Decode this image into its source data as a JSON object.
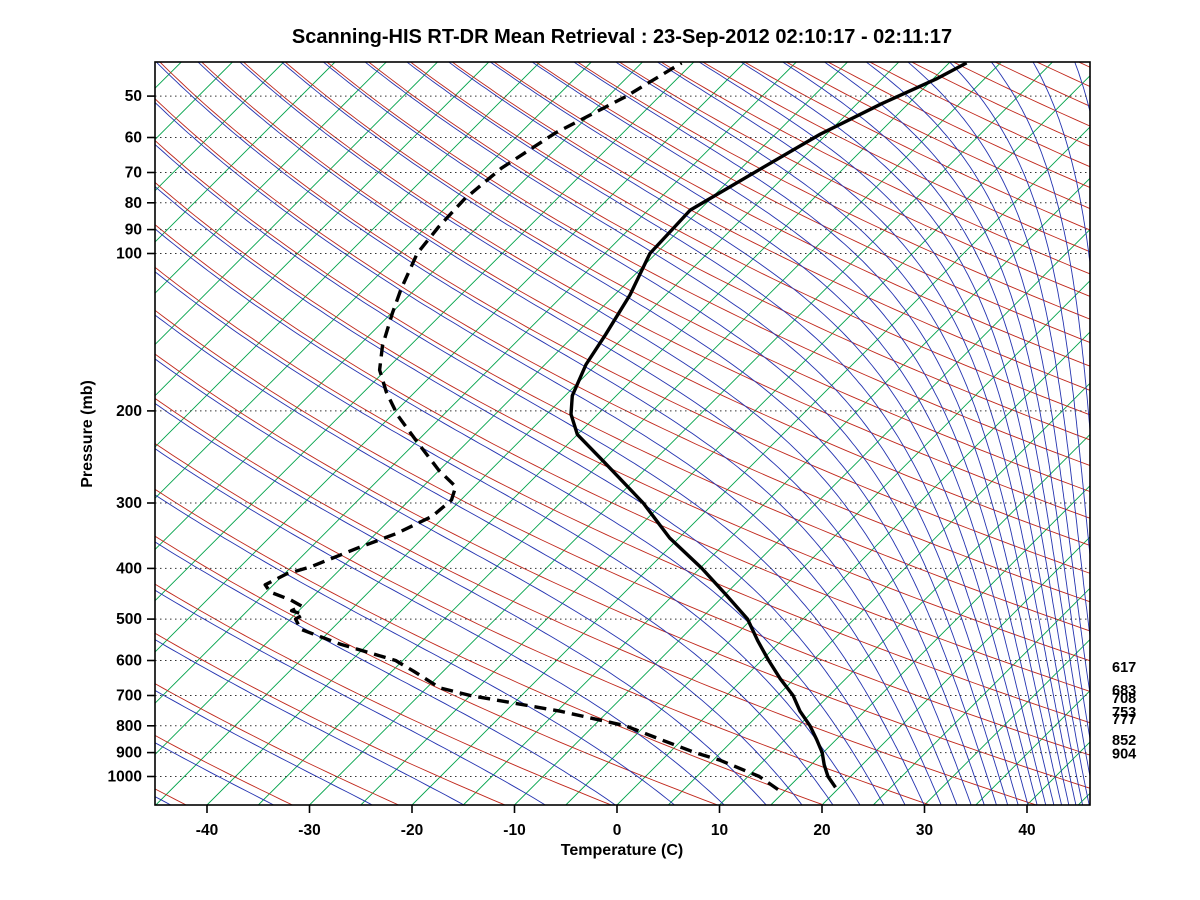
{
  "chart_data": {
    "type": "line",
    "title": "Scanning-HIS RT-DR Mean Retrieval : 23-Sep-2012 02:10:17 - 02:11:17",
    "xlabel": "Temperature (C)",
    "ylabel": "Pressure (mb)",
    "x_ticks": [
      -40,
      -30,
      -20,
      -10,
      0,
      10,
      20,
      30,
      40
    ],
    "y_ticks": [
      50,
      60,
      70,
      80,
      90,
      100,
      200,
      300,
      400,
      500,
      600,
      700,
      800,
      900,
      1000
    ],
    "x_range_at_surface_c": [
      -45,
      46
    ],
    "pressure_range_mb": [
      43,
      1134
    ],
    "skew_slope": 1.0,
    "grid": "horizontal-dotted",
    "legend": "none",
    "series": [
      {
        "name": "temperature",
        "line": "solid",
        "color": "#000000",
        "points_p_t": [
          [
            1049,
            19.6
          ],
          [
            1000,
            17.8
          ],
          [
            950,
            16.3
          ],
          [
            900,
            14.9
          ],
          [
            850,
            13.1
          ],
          [
            800,
            11.1
          ],
          [
            750,
            8.7
          ],
          [
            700,
            6.5
          ],
          [
            650,
            3.6
          ],
          [
            600,
            0.7
          ],
          [
            550,
            -2.3
          ],
          [
            500,
            -5.4
          ],
          [
            450,
            -9.8
          ],
          [
            400,
            -14.8
          ],
          [
            350,
            -20.9
          ],
          [
            300,
            -26.9
          ],
          [
            250,
            -34.8
          ],
          [
            222,
            -40.0
          ],
          [
            203,
            -42.6
          ],
          [
            187,
            -44.3
          ],
          [
            163,
            -46.0
          ],
          [
            143,
            -47.0
          ],
          [
            120,
            -48.5
          ],
          [
            100,
            -50.6
          ],
          [
            82.6,
            -50.9
          ],
          [
            68.7,
            -48.0
          ],
          [
            59.1,
            -45.6
          ],
          [
            51.7,
            -42.6
          ],
          [
            46.4,
            -39.7
          ],
          [
            43.2,
            -38.3
          ]
        ]
      },
      {
        "name": "dew_point",
        "line": "dashed",
        "color": "#000000",
        "points_p_t": [
          [
            1059,
            14.2
          ],
          [
            1000,
            11.1
          ],
          [
            931,
            5.7
          ],
          [
            900,
            2.5
          ],
          [
            850,
            -2.1
          ],
          [
            800,
            -6.9
          ],
          [
            750,
            -14.7
          ],
          [
            700,
            -25.0
          ],
          [
            677,
            -28.7
          ],
          [
            629,
            -32.9
          ],
          [
            600,
            -35.7
          ],
          [
            559,
            -42.6
          ],
          [
            523,
            -48.0
          ],
          [
            500,
            -49.5
          ],
          [
            490,
            -49.2
          ],
          [
            482,
            -50.7
          ],
          [
            472,
            -50.2
          ],
          [
            460,
            -51.8
          ],
          [
            444,
            -54.6
          ],
          [
            430,
            -55.8
          ],
          [
            410,
            -54.8
          ],
          [
            397,
            -53.1
          ],
          [
            366,
            -50.4
          ],
          [
            343,
            -48.0
          ],
          [
            318,
            -46.2
          ],
          [
            296,
            -45.9
          ],
          [
            279,
            -46.8
          ],
          [
            260,
            -50.0
          ],
          [
            227,
            -55.3
          ],
          [
            204,
            -59.4
          ],
          [
            184,
            -62.8
          ],
          [
            167,
            -65.6
          ],
          [
            150,
            -67.7
          ],
          [
            130,
            -69.9
          ],
          [
            117,
            -71.4
          ],
          [
            100,
            -73.3
          ],
          [
            89,
            -73.8
          ],
          [
            78.7,
            -74.0
          ],
          [
            68.7,
            -73.4
          ],
          [
            58.9,
            -71.6
          ],
          [
            50.2,
            -68.3
          ],
          [
            43.2,
            -66.1
          ]
        ]
      }
    ],
    "background": {
      "isotherms": {
        "min": -115,
        "max": 45,
        "step": 5,
        "color": "#00A24A"
      },
      "dry_adiabats": {
        "min": 223,
        "max": 603,
        "step": 10,
        "color": "#C0271B"
      },
      "moist_adiabats": {
        "min": 223,
        "max": 603,
        "step": 10,
        "color": "#2433B0"
      }
    },
    "right_pressure_labels": [
      617,
      683,
      708,
      753,
      777,
      852,
      904
    ]
  }
}
